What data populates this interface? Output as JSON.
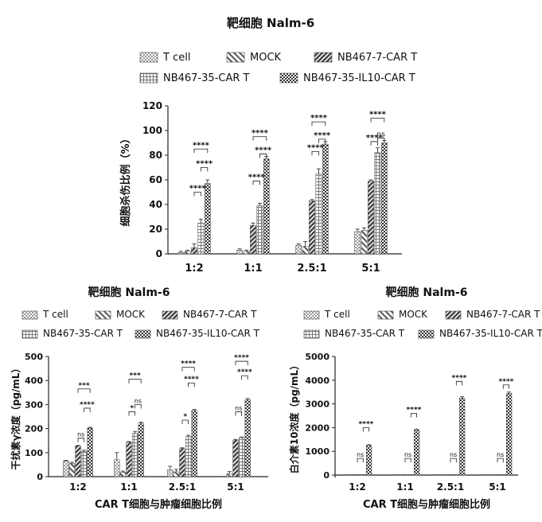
{
  "legend": {
    "items": [
      {
        "label": "T cell",
        "pattern": "dots"
      },
      {
        "label": "MOCK",
        "pattern": "backslash"
      },
      {
        "label": "NB467-7-CAR T",
        "pattern": "slash"
      },
      {
        "label": "NB467-35-CAR T",
        "pattern": "grid"
      },
      {
        "label": "NB467-35-IL10-CAR T",
        "pattern": "checker"
      }
    ]
  },
  "colors": {
    "ink": "#222222",
    "bar_stroke": "#444444",
    "background": "#ffffff"
  },
  "chart_data": [
    {
      "id": "top",
      "type": "bar",
      "title": "靶细胞 Nalm-6",
      "ylabel": "细胞杀伤比例（%）",
      "xlabel": "",
      "ylim": [
        0,
        120
      ],
      "yticks": [
        0,
        20,
        40,
        60,
        80,
        100,
        120
      ],
      "grid": false,
      "legend_position": "top",
      "categories": [
        "1:2",
        "1:1",
        "2.5:1",
        "5:1"
      ],
      "series": [
        {
          "name": "T cell",
          "values": [
            1,
            3,
            7,
            18
          ],
          "errors": [
            1,
            1,
            1,
            2
          ]
        },
        {
          "name": "MOCK",
          "values": [
            2,
            2,
            6,
            19
          ],
          "errors": [
            1,
            1,
            4,
            2
          ]
        },
        {
          "name": "NB467-7-CAR T",
          "values": [
            5,
            23,
            43,
            59
          ],
          "errors": [
            3,
            2,
            1,
            1
          ]
        },
        {
          "name": "NB467-35-CAR T",
          "values": [
            25,
            39,
            65,
            82
          ],
          "errors": [
            3,
            2,
            4,
            4
          ]
        },
        {
          "name": "NB467-35-IL10-CAR T",
          "values": [
            57,
            77,
            89,
            90
          ],
          "errors": [
            3,
            2,
            2,
            2
          ]
        }
      ],
      "annotations": [
        {
          "category": 0,
          "from": 2,
          "to": 4,
          "text": "****",
          "y": 85
        },
        {
          "category": 0,
          "from": 2,
          "to": 3,
          "text": "****",
          "y": 50
        },
        {
          "category": 0,
          "from": 3,
          "to": 4,
          "text": "****",
          "y": 70
        },
        {
          "category": 1,
          "from": 2,
          "to": 4,
          "text": "****",
          "y": 95
        },
        {
          "category": 1,
          "from": 2,
          "to": 3,
          "text": "****",
          "y": 59
        },
        {
          "category": 1,
          "from": 3,
          "to": 4,
          "text": "****",
          "y": 81
        },
        {
          "category": 2,
          "from": 2,
          "to": 4,
          "text": "****",
          "y": 107
        },
        {
          "category": 2,
          "from": 2,
          "to": 3,
          "text": "****",
          "y": 83
        },
        {
          "category": 2,
          "from": 3,
          "to": 4,
          "text": "****",
          "y": 93
        },
        {
          "category": 3,
          "from": 2,
          "to": 4,
          "text": "****",
          "y": 110
        },
        {
          "category": 3,
          "from": 2,
          "to": 3,
          "text": "****",
          "y": 91
        },
        {
          "category": 3,
          "from": 3,
          "to": 4,
          "text": "ns",
          "y": 94
        }
      ]
    },
    {
      "id": "bottom-left",
      "type": "bar",
      "title": "靶细胞 Nalm-6",
      "ylabel": "干扰素γ浓度（pg/mL）",
      "xlabel": "CAR T细胞与肿瘤细胞比例",
      "ylim": [
        0,
        500
      ],
      "yticks": [
        0,
        100,
        200,
        300,
        400,
        500
      ],
      "grid": false,
      "legend_position": "top",
      "categories": [
        "1:2",
        "1:1",
        "2.5:1",
        "5:1"
      ],
      "series": [
        {
          "name": "T cell",
          "values": [
            65,
            70,
            28,
            0
          ],
          "errors": [
            3,
            30,
            15,
            0
          ]
        },
        {
          "name": "MOCK",
          "values": [
            55,
            18,
            20,
            13
          ],
          "errors": [
            5,
            5,
            10,
            8
          ]
        },
        {
          "name": "NB467-7-CAR T",
          "values": [
            128,
            143,
            117,
            152
          ],
          "errors": [
            2,
            3,
            3,
            3
          ]
        },
        {
          "name": "NB467-35-CAR T",
          "values": [
            105,
            180,
            167,
            162
          ],
          "errors": [
            5,
            8,
            5,
            3
          ]
        },
        {
          "name": "NB467-35-IL10-CAR T",
          "values": [
            202,
            222,
            275,
            320
          ],
          "errors": [
            3,
            5,
            5,
            5
          ]
        }
      ],
      "annotations": [
        {
          "category": 0,
          "from": 2,
          "to": 4,
          "text": "***",
          "y": 365
        },
        {
          "category": 0,
          "from": 2,
          "to": 3,
          "text": "ns",
          "y": 160
        },
        {
          "category": 0,
          "from": 3,
          "to": 4,
          "text": "****",
          "y": 285
        },
        {
          "category": 1,
          "from": 2,
          "to": 4,
          "text": "***",
          "y": 405
        },
        {
          "category": 1,
          "from": 2,
          "to": 3,
          "text": "*",
          "y": 270
        },
        {
          "category": 1,
          "from": 3,
          "to": 4,
          "text": "ns",
          "y": 300
        },
        {
          "category": 2,
          "from": 2,
          "to": 4,
          "text": "****",
          "y": 455
        },
        {
          "category": 2,
          "from": 2,
          "to": 3,
          "text": "*",
          "y": 235
        },
        {
          "category": 2,
          "from": 3,
          "to": 4,
          "text": "****",
          "y": 390
        },
        {
          "category": 3,
          "from": 2,
          "to": 4,
          "text": "****",
          "y": 480
        },
        {
          "category": 3,
          "from": 2,
          "to": 3,
          "text": "ns",
          "y": 270
        },
        {
          "category": 3,
          "from": 3,
          "to": 4,
          "text": "****",
          "y": 420
        }
      ]
    },
    {
      "id": "bottom-right",
      "type": "bar",
      "title": "靶细胞 Nalm-6",
      "ylabel": "白介素10浓度（pg/mL）",
      "xlabel": "CAR T细胞与肿瘤细胞比例",
      "ylim": [
        -100,
        5000
      ],
      "yticks": [
        0,
        1000,
        2000,
        3000,
        4000,
        5000
      ],
      "grid": false,
      "legend_position": "top",
      "categories": [
        "1:2",
        "1:1",
        "2.5:1",
        "5:1"
      ],
      "series": [
        {
          "name": "T cell",
          "values": [
            0,
            0,
            0,
            0
          ],
          "errors": [
            0,
            0,
            0,
            0
          ]
        },
        {
          "name": "MOCK",
          "values": [
            0,
            0,
            0,
            0
          ],
          "errors": [
            0,
            0,
            0,
            0
          ]
        },
        {
          "name": "NB467-7-CAR T",
          "values": [
            0,
            0,
            0,
            0
          ],
          "errors": [
            0,
            0,
            0,
            0
          ]
        },
        {
          "name": "NB467-35-CAR T",
          "values": [
            0,
            0,
            0,
            0
          ],
          "errors": [
            0,
            0,
            0,
            0
          ]
        },
        {
          "name": "NB467-35-IL10-CAR T",
          "values": [
            1250,
            1900,
            3250,
            3450
          ],
          "errors": [
            30,
            40,
            50,
            50
          ]
        }
      ],
      "annotations": [
        {
          "category": 0,
          "from": 3,
          "to": 4,
          "text": "****",
          "y": 2000
        },
        {
          "category": 0,
          "from": 2,
          "to": 3,
          "text": "ns",
          "y": 700
        },
        {
          "category": 1,
          "from": 3,
          "to": 4,
          "text": "****",
          "y": 2600
        },
        {
          "category": 1,
          "from": 2,
          "to": 3,
          "text": "ns",
          "y": 700
        },
        {
          "category": 2,
          "from": 3,
          "to": 4,
          "text": "****",
          "y": 3950
        },
        {
          "category": 2,
          "from": 2,
          "to": 3,
          "text": "ns",
          "y": 700
        },
        {
          "category": 3,
          "from": 3,
          "to": 4,
          "text": "****",
          "y": 3800
        },
        {
          "category": 3,
          "from": 2,
          "to": 3,
          "text": "ns",
          "y": 700
        }
      ]
    }
  ]
}
